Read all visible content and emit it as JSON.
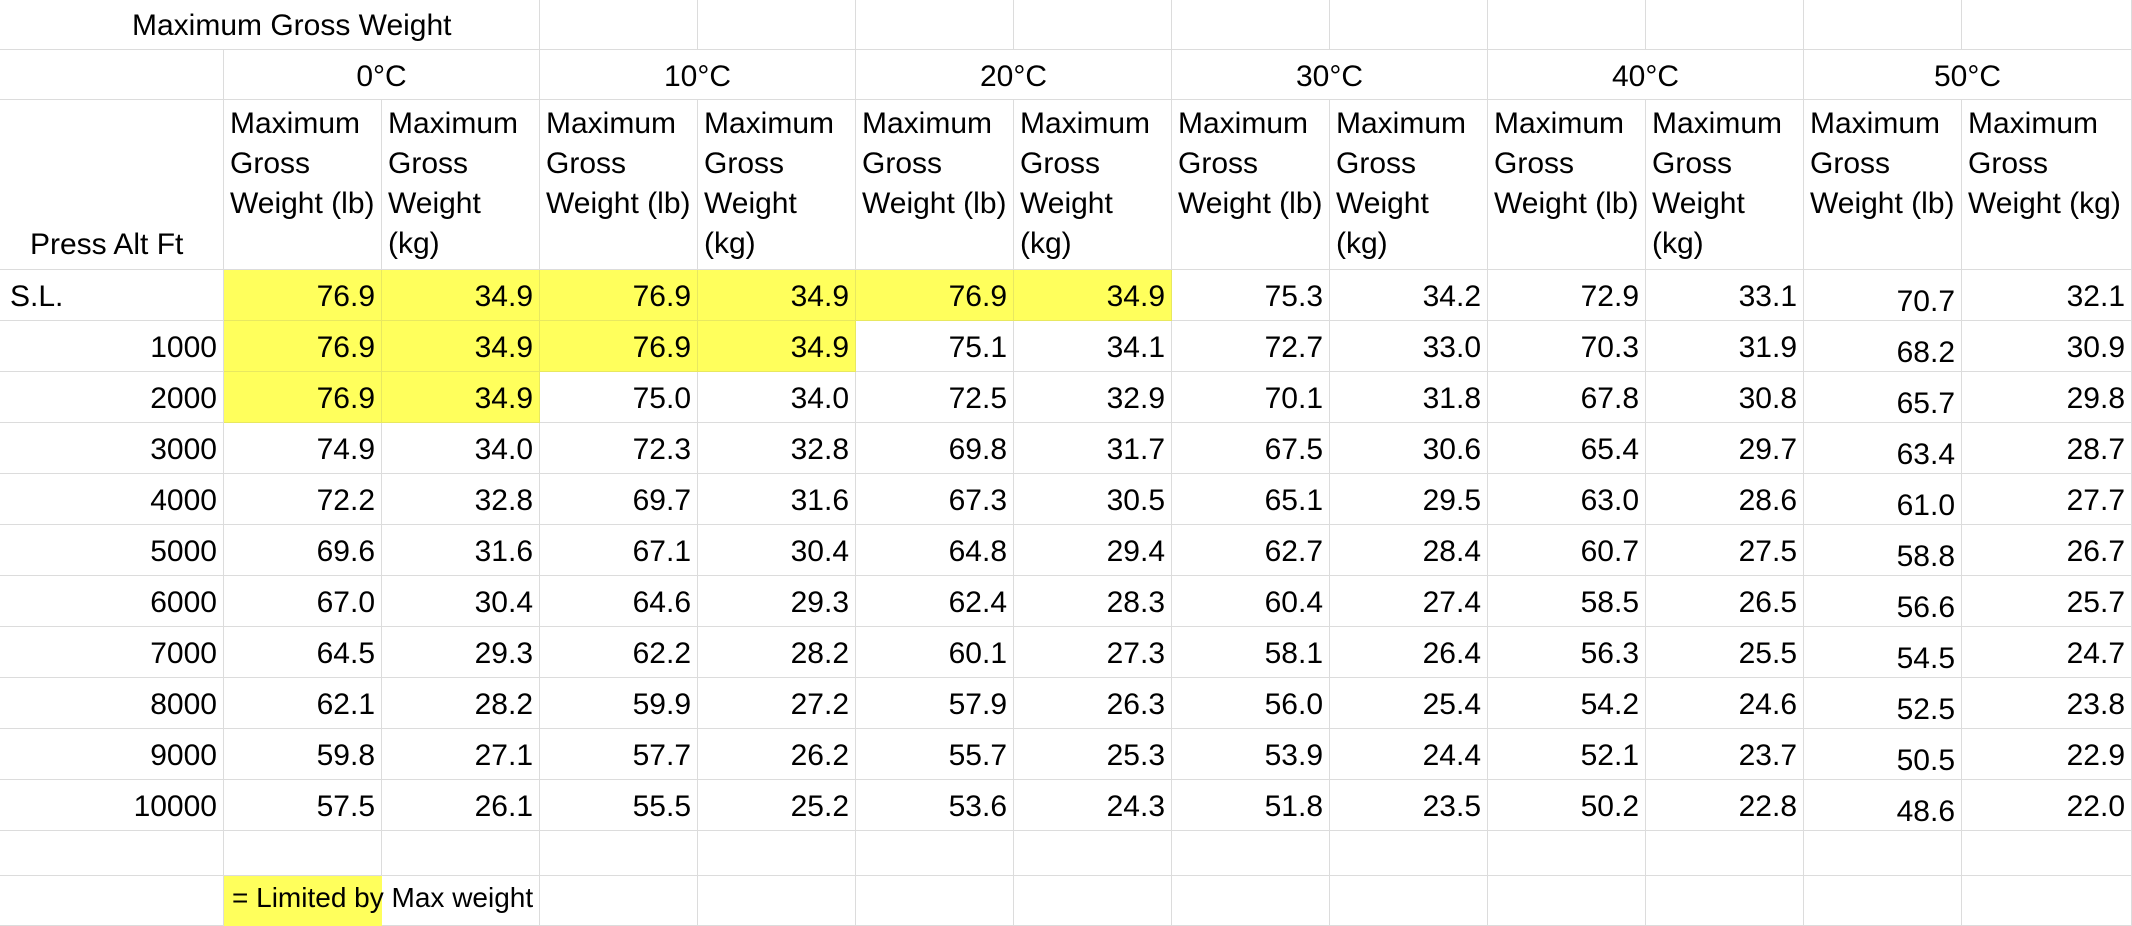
{
  "title": "Maximum Gross Weight",
  "row_header_label": "Press Alt Ft",
  "temperatures": [
    "0°C",
    "10°C",
    "20°C",
    "30°C",
    "40°C",
    "50°C"
  ],
  "sub_headers": [
    "Maximum Gross Weight (lb)",
    "Maximum Gross Weight (kg)"
  ],
  "rows": [
    {
      "alt": "S.L.",
      "values": [
        "76.9",
        "34.9",
        "76.9",
        "34.9",
        "76.9",
        "34.9",
        "75.3",
        "34.2",
        "72.9",
        "33.1",
        "70.7",
        "32.1"
      ],
      "limited": [
        true,
        true,
        true,
        true,
        true,
        true,
        false,
        false,
        false,
        false,
        false,
        false
      ]
    },
    {
      "alt": "1000",
      "values": [
        "76.9",
        "34.9",
        "76.9",
        "34.9",
        "75.1",
        "34.1",
        "72.7",
        "33.0",
        "70.3",
        "31.9",
        "68.2",
        "30.9"
      ],
      "limited": [
        true,
        true,
        true,
        true,
        false,
        false,
        false,
        false,
        false,
        false,
        false,
        false
      ]
    },
    {
      "alt": "2000",
      "values": [
        "76.9",
        "34.9",
        "75.0",
        "34.0",
        "72.5",
        "32.9",
        "70.1",
        "31.8",
        "67.8",
        "30.8",
        "65.7",
        "29.8"
      ],
      "limited": [
        true,
        true,
        false,
        false,
        false,
        false,
        false,
        false,
        false,
        false,
        false,
        false
      ]
    },
    {
      "alt": "3000",
      "values": [
        "74.9",
        "34.0",
        "72.3",
        "32.8",
        "69.8",
        "31.7",
        "67.5",
        "30.6",
        "65.4",
        "29.7",
        "63.4",
        "28.7"
      ],
      "limited": [
        false,
        false,
        false,
        false,
        false,
        false,
        false,
        false,
        false,
        false,
        false,
        false
      ]
    },
    {
      "alt": "4000",
      "values": [
        "72.2",
        "32.8",
        "69.7",
        "31.6",
        "67.3",
        "30.5",
        "65.1",
        "29.5",
        "63.0",
        "28.6",
        "61.0",
        "27.7"
      ],
      "limited": [
        false,
        false,
        false,
        false,
        false,
        false,
        false,
        false,
        false,
        false,
        false,
        false
      ]
    },
    {
      "alt": "5000",
      "values": [
        "69.6",
        "31.6",
        "67.1",
        "30.4",
        "64.8",
        "29.4",
        "62.7",
        "28.4",
        "60.7",
        "27.5",
        "58.8",
        "26.7"
      ],
      "limited": [
        false,
        false,
        false,
        false,
        false,
        false,
        false,
        false,
        false,
        false,
        false,
        false
      ]
    },
    {
      "alt": "6000",
      "values": [
        "67.0",
        "30.4",
        "64.6",
        "29.3",
        "62.4",
        "28.3",
        "60.4",
        "27.4",
        "58.5",
        "26.5",
        "56.6",
        "25.7"
      ],
      "limited": [
        false,
        false,
        false,
        false,
        false,
        false,
        false,
        false,
        false,
        false,
        false,
        false
      ]
    },
    {
      "alt": "7000",
      "values": [
        "64.5",
        "29.3",
        "62.2",
        "28.2",
        "60.1",
        "27.3",
        "58.1",
        "26.4",
        "56.3",
        "25.5",
        "54.5",
        "24.7"
      ],
      "limited": [
        false,
        false,
        false,
        false,
        false,
        false,
        false,
        false,
        false,
        false,
        false,
        false
      ]
    },
    {
      "alt": "8000",
      "values": [
        "62.1",
        "28.2",
        "59.9",
        "27.2",
        "57.9",
        "26.3",
        "56.0",
        "25.4",
        "54.2",
        "24.6",
        "52.5",
        "23.8"
      ],
      "limited": [
        false,
        false,
        false,
        false,
        false,
        false,
        false,
        false,
        false,
        false,
        false,
        false
      ]
    },
    {
      "alt": "9000",
      "values": [
        "59.8",
        "27.1",
        "57.7",
        "26.2",
        "55.7",
        "25.3",
        "53.9",
        "24.4",
        "52.1",
        "23.7",
        "50.5",
        "22.9"
      ],
      "limited": [
        false,
        false,
        false,
        false,
        false,
        false,
        false,
        false,
        false,
        false,
        false,
        false
      ]
    },
    {
      "alt": "10000",
      "values": [
        "57.5",
        "26.1",
        "55.5",
        "25.2",
        "53.6",
        "24.3",
        "51.8",
        "23.5",
        "50.2",
        "22.8",
        "48.6",
        "22.0"
      ],
      "limited": [
        false,
        false,
        false,
        false,
        false,
        false,
        false,
        false,
        false,
        false,
        false,
        false
      ]
    }
  ],
  "legend": {
    "text": "= Limited by Max weight",
    "color": "#ffff5c"
  }
}
